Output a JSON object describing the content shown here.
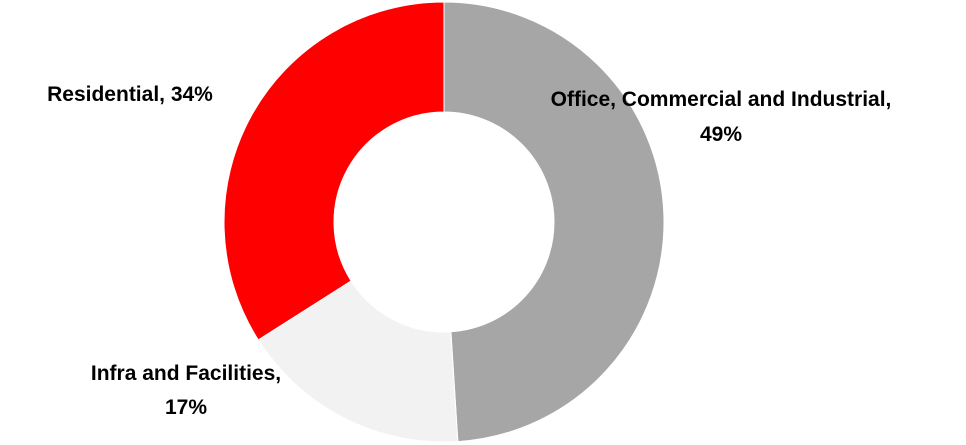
{
  "chart_data": {
    "type": "pie",
    "variant": "donut",
    "slices": [
      {
        "label": "Office, Commercial and Industrial",
        "value": 49,
        "display": "49%",
        "color": "#a6a6a6"
      },
      {
        "label": "Infra and Facilities",
        "value": 17,
        "display": "17%",
        "color": "#f2f2f2"
      },
      {
        "label": "Residential",
        "value": 34,
        "display": "34%",
        "color": "#ff0000"
      }
    ],
    "label_texts": [
      [
        "Office, Commercial and Industrial,",
        "49%"
      ],
      [
        "Infra and Facilities,",
        "17%"
      ],
      [
        "Residential, 34%"
      ]
    ],
    "legend": "none",
    "title": ""
  }
}
